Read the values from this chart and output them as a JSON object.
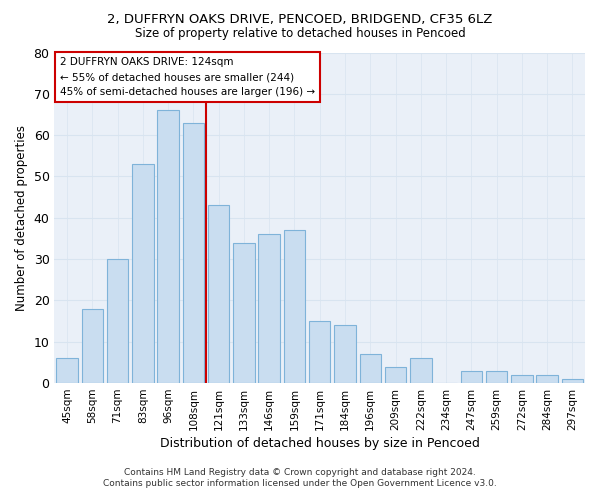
{
  "title1": "2, DUFFRYN OAKS DRIVE, PENCOED, BRIDGEND, CF35 6LZ",
  "title2": "Size of property relative to detached houses in Pencoed",
  "xlabel": "Distribution of detached houses by size in Pencoed",
  "ylabel": "Number of detached properties",
  "categories": [
    "45sqm",
    "58sqm",
    "71sqm",
    "83sqm",
    "96sqm",
    "108sqm",
    "121sqm",
    "133sqm",
    "146sqm",
    "159sqm",
    "171sqm",
    "184sqm",
    "196sqm",
    "209sqm",
    "222sqm",
    "234sqm",
    "247sqm",
    "259sqm",
    "272sqm",
    "284sqm",
    "297sqm"
  ],
  "values": [
    6,
    18,
    30,
    53,
    66,
    63,
    43,
    34,
    36,
    37,
    15,
    14,
    7,
    4,
    6,
    0,
    3,
    3,
    2,
    2,
    1
  ],
  "bar_color": "#c9ddf0",
  "bar_edge_color": "#7fb3d9",
  "grid_color": "#d8e4f0",
  "annotation_lines": [
    "2 DUFFRYN OAKS DRIVE: 124sqm",
    "← 55% of detached houses are smaller (244)",
    "45% of semi-detached houses are larger (196) →"
  ],
  "vline_color": "#cc0000",
  "vline_x": 5.5,
  "annotation_box_color": "#ffffff",
  "annotation_box_edge_color": "#cc0000",
  "footer1": "Contains HM Land Registry data © Crown copyright and database right 2024.",
  "footer2": "Contains public sector information licensed under the Open Government Licence v3.0.",
  "fig_background": "#ffffff",
  "ax_background": "#eaf0f8",
  "ylim": [
    0,
    80
  ],
  "yticks": [
    0,
    10,
    20,
    30,
    40,
    50,
    60,
    70,
    80
  ]
}
